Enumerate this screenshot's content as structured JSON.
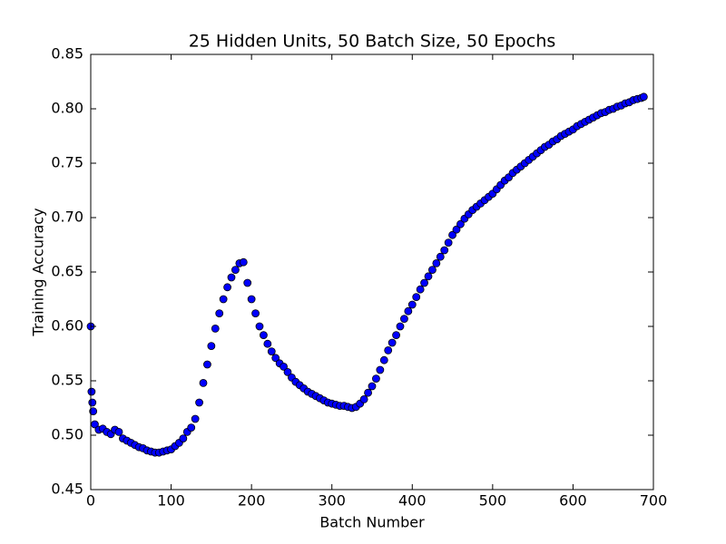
{
  "chart_data": {
    "type": "scatter",
    "title": "25 Hidden Units, 50 Batch Size, 50 Epochs",
    "xlabel": "Batch Number",
    "ylabel": "Training Accuracy",
    "xlim": [
      0,
      700
    ],
    "xticks": [
      0,
      100,
      200,
      300,
      400,
      500,
      600,
      700
    ],
    "ylim": [
      0.45,
      0.85
    ],
    "yticks": [
      0.45,
      {
        "value": 0.5,
        "label": "0.50"
      },
      0.55,
      {
        "value": 0.6,
        "label": "0.60"
      },
      0.65,
      {
        "value": 0.7,
        "label": "0.70"
      },
      0.75,
      {
        "value": 0.8,
        "label": "0.80"
      },
      0.85
    ],
    "series": [
      {
        "color": "#0000ff",
        "x": [
          0,
          1,
          2,
          3,
          5,
          10,
          15,
          20,
          25,
          30,
          35,
          40,
          45,
          50,
          55,
          60,
          65,
          70,
          75,
          80,
          85,
          90,
          95,
          100,
          105,
          110,
          115,
          120,
          125,
          130,
          135,
          140,
          145,
          150,
          155,
          160,
          165,
          170,
          175,
          180,
          185,
          190,
          195,
          200,
          205,
          210,
          215,
          220,
          225,
          230,
          235,
          240,
          245,
          250,
          255,
          260,
          265,
          270,
          275,
          280,
          285,
          290,
          295,
          300,
          305,
          310,
          315,
          320,
          325,
          330,
          335,
          340,
          345,
          350,
          355,
          360,
          365,
          370,
          375,
          380,
          385,
          390,
          395,
          400,
          405,
          410,
          415,
          420,
          425,
          430,
          435,
          440,
          445,
          450,
          455,
          460,
          465,
          470,
          475,
          480,
          485,
          490,
          495,
          500,
          505,
          510,
          515,
          520,
          525,
          530,
          535,
          540,
          545,
          550,
          555,
          560,
          565,
          570,
          575,
          580,
          585,
          590,
          595,
          600,
          605,
          610,
          615,
          620,
          625,
          630,
          635,
          640,
          645,
          650,
          655,
          660,
          665,
          670,
          675,
          680,
          685,
          688
        ],
        "values": [
          0.6,
          0.54,
          0.53,
          0.522,
          0.51,
          0.505,
          0.506,
          0.503,
          0.501,
          0.505,
          0.503,
          0.497,
          0.495,
          0.493,
          0.491,
          0.489,
          0.488,
          0.486,
          0.485,
          0.484,
          0.484,
          0.485,
          0.486,
          0.487,
          0.49,
          0.493,
          0.497,
          0.503,
          0.507,
          0.515,
          0.53,
          0.548,
          0.565,
          0.582,
          0.598,
          0.612,
          0.625,
          0.636,
          0.645,
          0.652,
          0.658,
          0.659,
          0.64,
          0.625,
          0.612,
          0.6,
          0.592,
          0.584,
          0.577,
          0.571,
          0.566,
          0.563,
          0.558,
          0.553,
          0.549,
          0.546,
          0.543,
          0.54,
          0.538,
          0.536,
          0.534,
          0.532,
          0.53,
          0.529,
          0.528,
          0.527,
          0.527,
          0.526,
          0.525,
          0.526,
          0.529,
          0.533,
          0.539,
          0.545,
          0.552,
          0.56,
          0.569,
          0.578,
          0.585,
          0.592,
          0.6,
          0.607,
          0.614,
          0.62,
          0.627,
          0.634,
          0.64,
          0.646,
          0.652,
          0.658,
          0.664,
          0.67,
          0.677,
          0.684,
          0.689,
          0.694,
          0.699,
          0.703,
          0.707,
          0.71,
          0.713,
          0.716,
          0.719,
          0.722,
          0.726,
          0.73,
          0.734,
          0.737,
          0.741,
          0.744,
          0.747,
          0.75,
          0.753,
          0.756,
          0.759,
          0.762,
          0.765,
          0.767,
          0.77,
          0.772,
          0.775,
          0.777,
          0.779,
          0.781,
          0.784,
          0.786,
          0.788,
          0.79,
          0.792,
          0.794,
          0.796,
          0.797,
          0.799,
          0.8,
          0.802,
          0.803,
          0.805,
          0.806,
          0.808,
          0.809,
          0.81,
          0.811
        ]
      }
    ]
  }
}
